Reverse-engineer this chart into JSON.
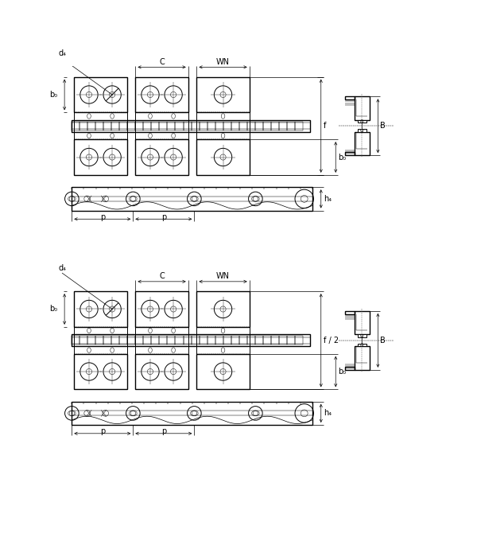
{
  "bg_color": "#ffffff",
  "line_color": "#000000",
  "fig_width": 6.0,
  "fig_height": 6.9,
  "labels": {
    "d4": "d₄",
    "C": "C",
    "WN": "WN",
    "b0": "b₀",
    "f": "f",
    "f2": "f / 2",
    "B": "B",
    "h4": "h₄",
    "p": "p"
  }
}
